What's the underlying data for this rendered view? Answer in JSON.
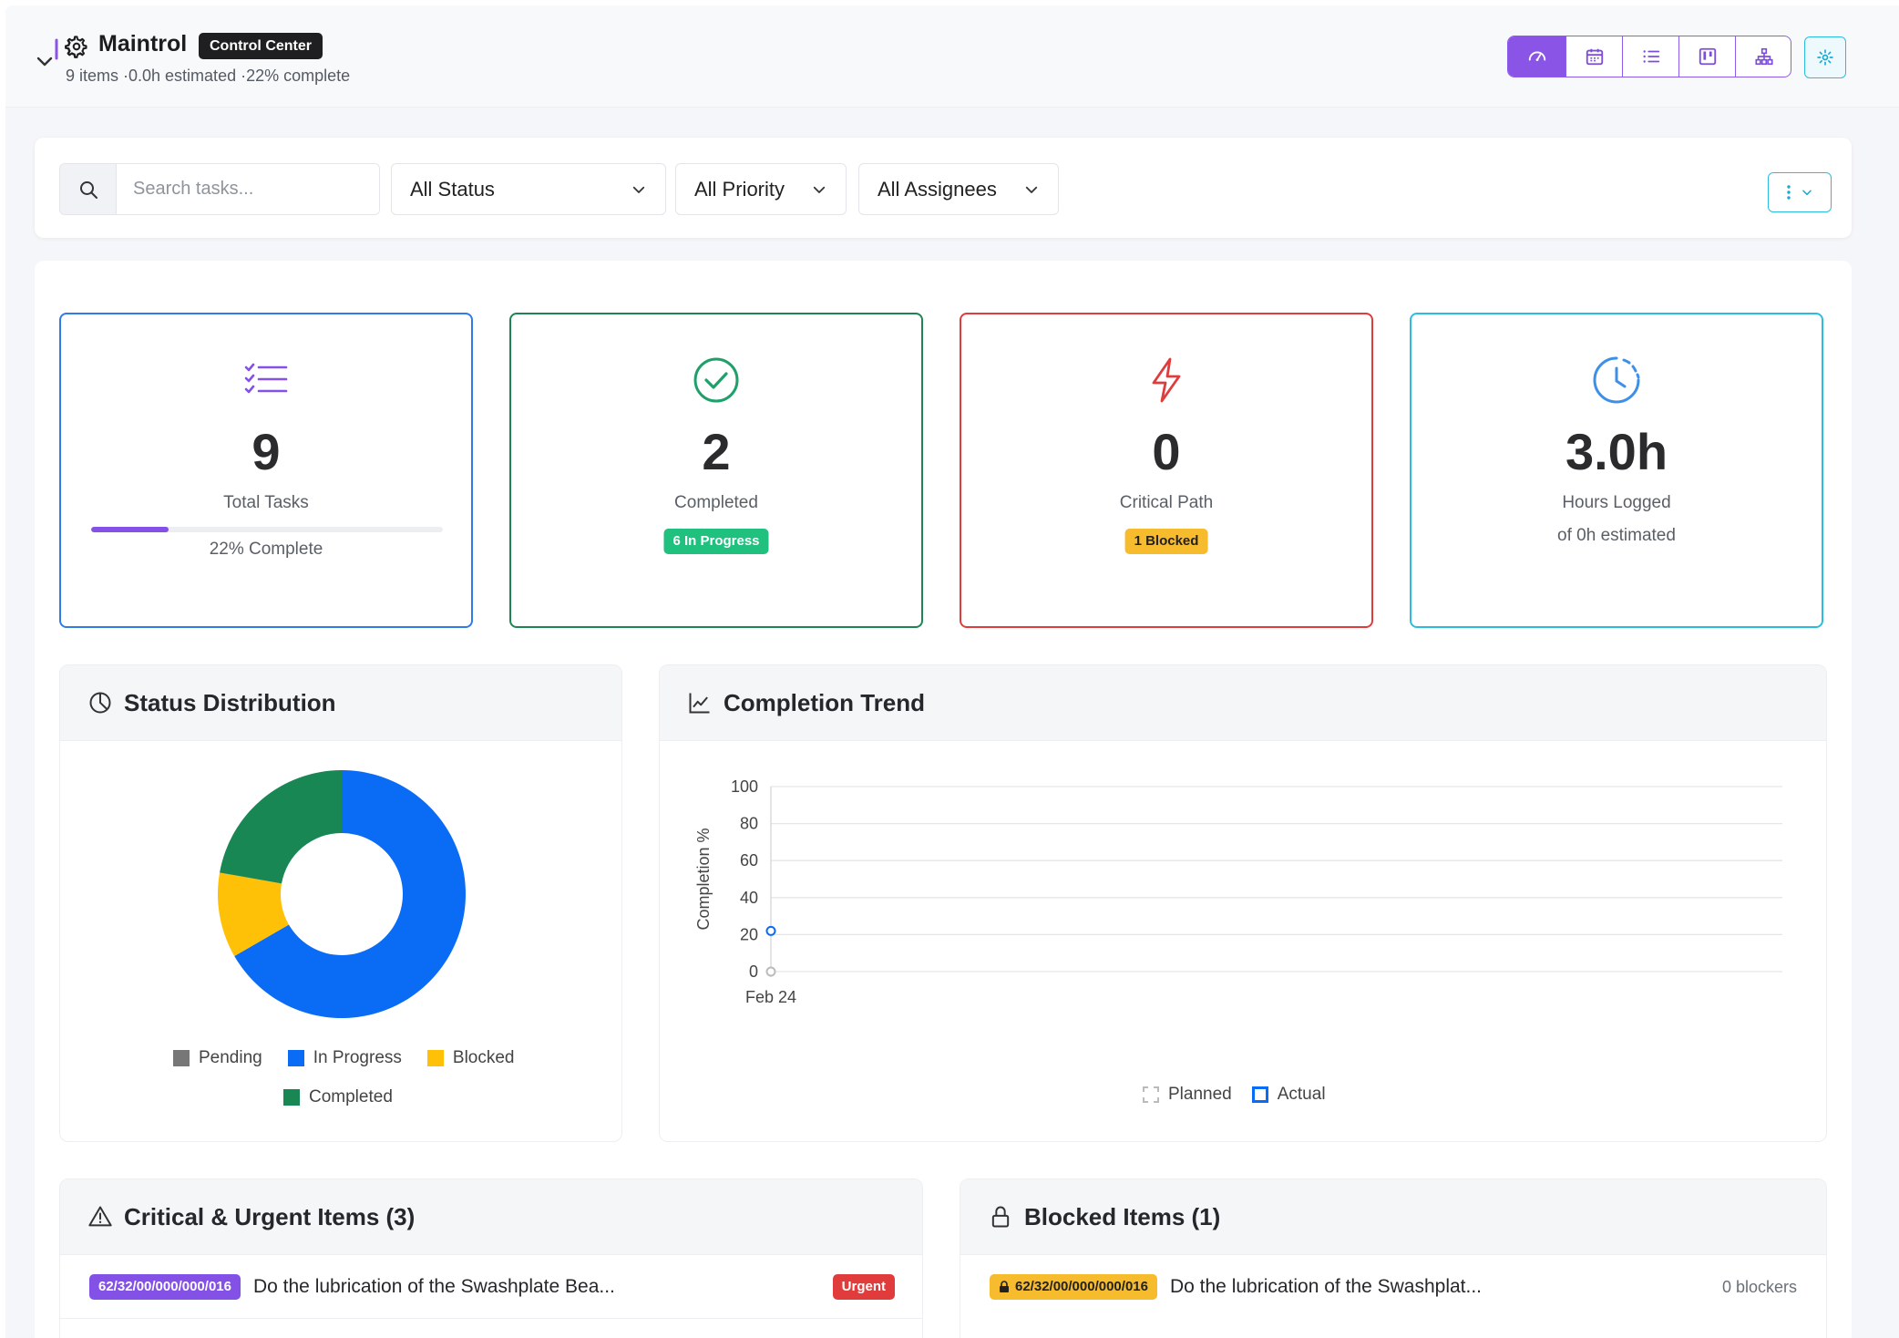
{
  "header": {
    "app_name": "Maintrol",
    "badge": "Control Center",
    "meta": "9 items ·0.0h estimated ·22% complete",
    "view_buttons": [
      {
        "icon": "dashboard-icon",
        "active": true
      },
      {
        "icon": "calendar-icon",
        "active": false
      },
      {
        "icon": "list-icon",
        "active": false
      },
      {
        "icon": "kanban-icon",
        "active": false
      },
      {
        "icon": "hierarchy-icon",
        "active": false
      }
    ]
  },
  "filters": {
    "search_placeholder": "Search tasks...",
    "status": "All Status",
    "priority": "All Priority",
    "assignees": "All Assignees"
  },
  "stats": {
    "total": {
      "value": "9",
      "label": "Total Tasks",
      "sub": "22% Complete",
      "progress_percent": 22,
      "color": "#2f7be8"
    },
    "completed": {
      "value": "2",
      "label": "Completed",
      "badge": "6 In Progress",
      "color": "#1d8553"
    },
    "critical": {
      "value": "0",
      "label": "Critical Path",
      "badge": "1 Blocked",
      "color": "#e03c3c"
    },
    "hours": {
      "value": "3.0h",
      "label": "Hours Logged",
      "sub": "of 0h estimated",
      "color": "#2bbde0"
    }
  },
  "status_distribution": {
    "title": "Status Distribution",
    "legend": [
      "Pending",
      "In Progress",
      "Blocked",
      "Completed"
    ]
  },
  "completion_trend": {
    "title": "Completion Trend",
    "legend": [
      "Planned",
      "Actual"
    ]
  },
  "chart_data": [
    {
      "type": "pie",
      "variant": "doughnut",
      "categories": [
        "Pending",
        "In Progress",
        "Blocked",
        "Completed"
      ],
      "values": [
        0,
        6,
        1,
        2
      ],
      "colors": [
        "#777777",
        "#0a6cf5",
        "#ffc107",
        "#198754"
      ]
    },
    {
      "type": "line",
      "x": [
        "Feb 24"
      ],
      "ylabel": "Completion %",
      "ylim": [
        0,
        100
      ],
      "yticks": [
        0,
        20,
        40,
        60,
        80,
        100
      ],
      "series": [
        {
          "name": "Planned",
          "values": [
            0
          ],
          "color": "#bbbbbb"
        },
        {
          "name": "Actual",
          "values": [
            22
          ],
          "color": "#0a6cf5"
        }
      ],
      "legend": "bottom"
    }
  ],
  "critical_items": {
    "title": "Critical & Urgent Items (3)",
    "rows": [
      {
        "id": "62/32/00/000/000/016",
        "title": "Do the lubrication of the Swashplate Bea...",
        "priority": "Urgent"
      }
    ]
  },
  "blocked_items": {
    "title": "Blocked Items (1)",
    "rows": [
      {
        "id": "62/32/00/000/000/016",
        "title": "Do the lubrication of the Swashplat...",
        "blockers": "0 blockers"
      }
    ]
  }
}
